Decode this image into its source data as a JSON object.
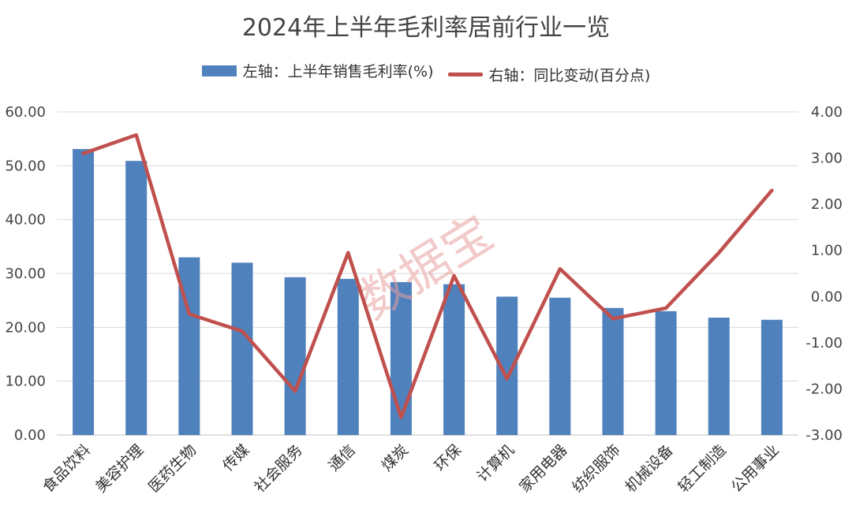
{
  "chart_data": {
    "type": "bar",
    "title": "2024年上半年毛利率居前行业一览",
    "legend": {
      "placement": "top",
      "bar_label": "左轴：上半年销售毛利率(%)",
      "line_label": "右轴：同比变动(百分点)"
    },
    "categories": [
      "食品饮料",
      "美容护理",
      "医药生物",
      "传媒",
      "社会服务",
      "通信",
      "煤炭",
      "环保",
      "计算机",
      "家用电器",
      "纺织服饰",
      "机械设备",
      "轻工制造",
      "公用事业"
    ],
    "series": [
      {
        "name": "左轴：上半年销售毛利率(%)",
        "type": "bar",
        "axis": "left",
        "color": "#4f81bd",
        "values": [
          53.1,
          50.9,
          33.0,
          32.0,
          29.3,
          29.0,
          28.4,
          28.0,
          25.7,
          25.5,
          23.6,
          23.0,
          21.8,
          21.4
        ]
      },
      {
        "name": "右轴：同比变动(百分点)",
        "type": "line",
        "axis": "right",
        "color": "#c0504d",
        "values": [
          3.1,
          3.5,
          -0.38,
          -0.75,
          -2.05,
          0.95,
          -2.62,
          0.45,
          -1.78,
          0.6,
          -0.48,
          -0.25,
          0.95,
          2.3
        ]
      }
    ],
    "y_left": {
      "ylim": [
        0,
        60
      ],
      "ticks": [
        "0.00",
        "10.00",
        "20.00",
        "30.00",
        "40.00",
        "50.00",
        "60.00"
      ]
    },
    "y_right": {
      "ylim": [
        -3,
        4
      ],
      "ticks": [
        "-3.00",
        "-2.00",
        "-1.00",
        "0.00",
        "1.00",
        "2.00",
        "3.00",
        "4.00"
      ]
    },
    "grid": true,
    "watermark": "数据宝"
  }
}
